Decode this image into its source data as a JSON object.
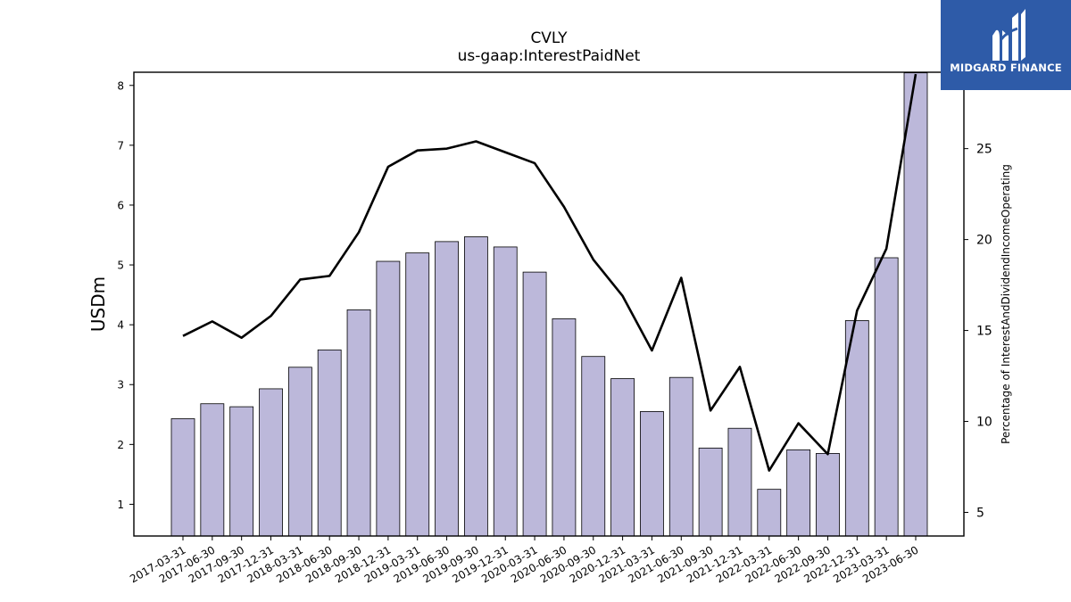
{
  "chart_data": {
    "type": "bar",
    "title": "CVLY",
    "subtitle": "us-gaap:InterestPaidNet",
    "ylabel": "USDm",
    "y2label": "Percentage of InterestAndDividendIncomeOperating",
    "categories": [
      "2017-03-31",
      "2017-06-30",
      "2017-09-30",
      "2017-12-31",
      "2018-03-31",
      "2018-06-30",
      "2018-09-30",
      "2018-12-31",
      "2019-03-31",
      "2019-06-30",
      "2019-09-30",
      "2019-12-31",
      "2020-03-31",
      "2020-06-30",
      "2020-09-30",
      "2020-12-31",
      "2021-03-31",
      "2021-06-30",
      "2021-09-30",
      "2021-12-31",
      "2022-03-31",
      "2022-06-30",
      "2022-09-30",
      "2022-12-31",
      "2023-03-31",
      "2023-06-30"
    ],
    "series": [
      {
        "name": "",
        "type": "bar",
        "axis": "left",
        "values": [
          2.43,
          2.68,
          2.63,
          2.93,
          3.29,
          3.58,
          4.25,
          5.06,
          5.2,
          5.39,
          5.47,
          5.3,
          4.88,
          4.1,
          3.47,
          3.1,
          2.55,
          3.12,
          1.94,
          2.27,
          1.25,
          1.91,
          1.85,
          4.07,
          5.12,
          8.21
        ]
      },
      {
        "name": "",
        "type": "line",
        "axis": "right",
        "values": [
          14.7,
          15.5,
          14.6,
          15.8,
          17.8,
          18.0,
          20.4,
          24.0,
          24.9,
          25.0,
          25.4,
          24.8,
          24.2,
          21.8,
          18.9,
          16.9,
          13.9,
          17.9,
          10.6,
          13.0,
          7.3,
          9.9,
          8.2,
          16.1,
          19.5,
          29.1
        ]
      }
    ],
    "ylim": [
      0.47,
      8.22
    ],
    "y2lim": [
      3.7,
      29.2
    ],
    "yticks": [
      1,
      2,
      3,
      4,
      5,
      6,
      7,
      8
    ],
    "y2ticks": [
      5,
      10,
      15,
      20,
      25
    ],
    "colors": {
      "bar_fill": "#bcb8da",
      "bar_edge": "#000000",
      "line": "#000000"
    }
  },
  "logo": {
    "text": "MIDGARD FINANCE",
    "color": "#2e5ba8"
  }
}
